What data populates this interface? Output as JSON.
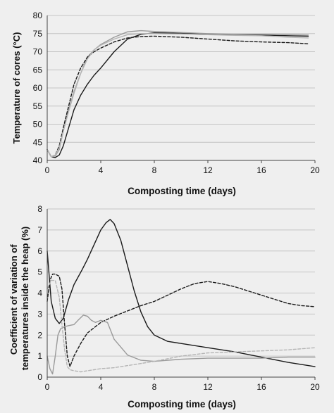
{
  "chart_data": [
    {
      "type": "line",
      "xlabel": "Composting  time (days)",
      "ylabel": "Temperature of cores (°C)",
      "xlim": [
        0,
        20
      ],
      "ylim": [
        40,
        80
      ],
      "xticks": [
        "0",
        "4",
        "8",
        "12",
        "16",
        "20"
      ],
      "yticks": [
        "40",
        "45",
        "50",
        "55",
        "60",
        "65",
        "70",
        "75",
        "80"
      ],
      "grid": "horizontal",
      "series": [
        {
          "color": "#1a1a1a",
          "dash": "solid",
          "x": [
            0,
            0.3,
            0.6,
            0.9,
            1.2,
            1.6,
            2,
            2.5,
            3,
            3.5,
            4,
            5,
            6,
            7,
            8,
            10,
            12,
            14,
            16,
            18,
            19.5
          ],
          "y": [
            43,
            41,
            40.8,
            41.5,
            44,
            49,
            54,
            58,
            61,
            63.5,
            65.5,
            70,
            73.5,
            74.8,
            75.2,
            75.1,
            74.9,
            74.7,
            74.6,
            74.4,
            74.3
          ]
        },
        {
          "color": "#9a9a9a",
          "dash": "solid",
          "x": [
            0,
            0.3,
            0.6,
            0.9,
            1.2,
            1.6,
            2,
            2.5,
            3,
            3.5,
            4,
            5,
            6,
            7,
            8,
            10,
            12,
            14,
            16,
            18,
            19.5
          ],
          "y": [
            43,
            41,
            41.2,
            43,
            48,
            54,
            59,
            64,
            68.5,
            70.5,
            72,
            74,
            75.5,
            75.8,
            75.6,
            75.3,
            75,
            74.8,
            74.8,
            74.7,
            74.6
          ]
        },
        {
          "color": "#1a1a1a",
          "dash": "dashed",
          "x": [
            0,
            0.3,
            0.6,
            0.9,
            1.2,
            1.6,
            2,
            2.5,
            3,
            3.5,
            4,
            5,
            6,
            7,
            8,
            10,
            12,
            14,
            16,
            18,
            19.5
          ],
          "y": [
            43,
            41,
            41.5,
            44,
            49,
            55,
            61,
            65.5,
            68.5,
            70,
            71,
            72.7,
            73.8,
            74.2,
            74.3,
            74,
            73.5,
            73,
            72.7,
            72.5,
            72.2
          ]
        },
        {
          "color": "#b5b5b5",
          "dash": "solid",
          "x": [
            0,
            0.3,
            0.6,
            0.9,
            1.2,
            1.6,
            2,
            2.5,
            3,
            3.5,
            4,
            5,
            6,
            7,
            8,
            10,
            12,
            14,
            16,
            18,
            19.5
          ],
          "y": [
            43,
            41,
            41.5,
            43.5,
            48,
            53.5,
            58.5,
            64,
            68,
            70.5,
            71.8,
            73.5,
            74.7,
            75,
            75,
            74.9,
            74.7,
            74.5,
            74.4,
            74,
            73.8
          ]
        }
      ]
    },
    {
      "type": "line",
      "xlabel": "Composting time (days)",
      "ylabel": "Coefficient of variation of temperatures inside the heap (%)",
      "xlim": [
        0,
        20
      ],
      "ylim": [
        0,
        8
      ],
      "xticks": [
        "0",
        "4",
        "8",
        "12",
        "16",
        "20"
      ],
      "yticks": [
        "0",
        "1",
        "2",
        "3",
        "4",
        "5",
        "6",
        "7",
        "8"
      ],
      "grid": "horizontal",
      "series": [
        {
          "color": "#1a1a1a",
          "dash": "solid",
          "x": [
            0,
            0.3,
            0.6,
            0.9,
            1.2,
            1.6,
            2,
            2.6,
            3,
            3.5,
            4,
            4.4,
            4.7,
            5,
            5.5,
            6,
            6.5,
            7,
            7.5,
            8,
            9,
            10,
            12,
            14,
            16,
            18,
            20
          ],
          "y": [
            6,
            3.6,
            2.8,
            2.55,
            2.8,
            3.7,
            4.4,
            5.1,
            5.6,
            6.3,
            7,
            7.35,
            7.5,
            7.3,
            6.5,
            5.3,
            4.1,
            3.1,
            2.4,
            2.0,
            1.7,
            1.6,
            1.4,
            1.2,
            0.95,
            0.7,
            0.5
          ]
        },
        {
          "color": "#1a1a1a",
          "dash": "dashed",
          "x": [
            0,
            0.2,
            0.4,
            0.6,
            0.9,
            1.1,
            1.3,
            1.5,
            1.7,
            2,
            2.5,
            3,
            4,
            5,
            6,
            7,
            8,
            9,
            10,
            11,
            12,
            13,
            14,
            15,
            16,
            17,
            18,
            19,
            20
          ],
          "y": [
            3.6,
            4.6,
            4.9,
            4.9,
            4.8,
            4.2,
            2.5,
            1.0,
            0.5,
            1.0,
            1.6,
            2.1,
            2.6,
            2.9,
            3.15,
            3.4,
            3.6,
            3.9,
            4.2,
            4.45,
            4.55,
            4.45,
            4.3,
            4.1,
            3.9,
            3.7,
            3.5,
            3.4,
            3.35
          ]
        },
        {
          "color": "#9a9a9a",
          "dash": "solid",
          "x": [
            0,
            0.2,
            0.4,
            0.6,
            0.8,
            1,
            1.3,
            1.6,
            2,
            2.3,
            2.7,
            3,
            3.3,
            3.6,
            4,
            4.5,
            5,
            6,
            7,
            8,
            10,
            12,
            14,
            16,
            18,
            20
          ],
          "y": [
            1.0,
            0.4,
            0.15,
            1.0,
            2.0,
            2.3,
            2.4,
            2.45,
            2.5,
            2.7,
            2.95,
            2.9,
            2.7,
            2.6,
            2.7,
            2.6,
            1.8,
            1.05,
            0.8,
            0.75,
            0.85,
            0.9,
            0.9,
            0.9,
            0.95,
            0.95
          ]
        },
        {
          "color": "#b5b5b5",
          "dash": "dashed",
          "x": [
            0,
            0.3,
            0.6,
            0.9,
            1.1,
            1.3,
            1.5,
            1.7,
            2,
            2.5,
            3,
            3.5,
            4,
            5,
            6,
            8,
            10,
            12,
            14,
            16,
            18,
            20
          ],
          "y": [
            4.2,
            4.6,
            4.6,
            3.8,
            2.5,
            1.3,
            0.5,
            0.35,
            0.3,
            0.25,
            0.3,
            0.35,
            0.4,
            0.45,
            0.55,
            0.75,
            1.0,
            1.15,
            1.2,
            1.25,
            1.3,
            1.4
          ]
        }
      ]
    }
  ]
}
